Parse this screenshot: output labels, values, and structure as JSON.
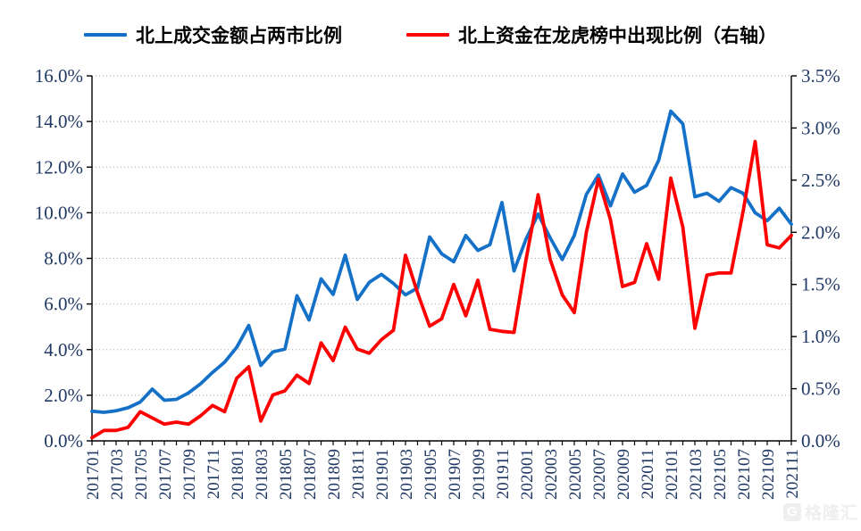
{
  "colors": {
    "blue_series": "#1571C8",
    "red_series": "#FE0000",
    "axis_label": "#1F3864",
    "gridline": "#A6A6A6",
    "spine": "#000000",
    "watermark_gray": "#e2e2e2"
  },
  "legend": {
    "items": [
      {
        "label": "北上成交金额占两市比例",
        "color": "#1571C8"
      },
      {
        "label": "北上资金在龙虎榜中出现比例（右轴）",
        "color": "#FE0000"
      }
    ]
  },
  "watermark": {
    "icon_letter": "G",
    "text": "格隆汇"
  },
  "chart_data": {
    "type": "line",
    "grid": "horizontal-dotted",
    "legend_position": "top-center",
    "x": [
      "201701",
      "201702",
      "201703",
      "201704",
      "201705",
      "201706",
      "201707",
      "201708",
      "201709",
      "201710",
      "201711",
      "201712",
      "201801",
      "201802",
      "201803",
      "201804",
      "201805",
      "201806",
      "201807",
      "201808",
      "201809",
      "201810",
      "201811",
      "201812",
      "201901",
      "201902",
      "201903",
      "201904",
      "201905",
      "201906",
      "201907",
      "201908",
      "201909",
      "201910",
      "201911",
      "201912",
      "202001",
      "202002",
      "202003",
      "202004",
      "202005",
      "202006",
      "202007",
      "202008",
      "202009",
      "202010",
      "202011",
      "202012",
      "202101",
      "202102",
      "202103",
      "202104",
      "202105",
      "202106",
      "202107",
      "202108",
      "202109",
      "202110",
      "202111"
    ],
    "x_tick_labels": [
      "201701",
      "201703",
      "201705",
      "201707",
      "201709",
      "201711",
      "201801",
      "201803",
      "201805",
      "201807",
      "201809",
      "201811",
      "201901",
      "201903",
      "201905",
      "201907",
      "201909",
      "201911",
      "202001",
      "202003",
      "202005",
      "202007",
      "202009",
      "202011",
      "202101",
      "202103",
      "202105",
      "202107",
      "202109",
      "202111"
    ],
    "left_axis": {
      "min": 0,
      "max": 16,
      "step": 2,
      "tick_labels": [
        "0.0%",
        "2.0%",
        "4.0%",
        "6.0%",
        "8.0%",
        "10.0%",
        "12.0%",
        "14.0%",
        "16.0%"
      ]
    },
    "right_axis": {
      "min": 0,
      "max": 3.5,
      "step": 0.5,
      "tick_labels": [
        "0.0%",
        "0.5%",
        "1.0%",
        "1.5%",
        "2.0%",
        "2.5%",
        "3.0%",
        "3.5%"
      ]
    },
    "series": [
      {
        "name": "北上成交金额占两市比例",
        "axis": "left",
        "color": "#1571C8",
        "values": [
          1.3,
          1.25,
          1.32,
          1.45,
          1.7,
          2.27,
          1.78,
          1.82,
          2.1,
          2.5,
          3.0,
          3.45,
          4.1,
          5.06,
          3.31,
          3.9,
          4.02,
          6.36,
          5.3,
          7.1,
          6.42,
          8.14,
          6.2,
          6.95,
          7.3,
          6.9,
          6.4,
          6.7,
          8.94,
          8.2,
          7.85,
          9.0,
          8.35,
          8.6,
          10.45,
          7.45,
          8.85,
          9.94,
          8.9,
          7.95,
          9.0,
          10.8,
          11.65,
          10.3,
          11.7,
          10.9,
          11.2,
          12.3,
          14.45,
          13.9,
          10.7,
          10.85,
          10.5,
          11.1,
          10.85,
          10.0,
          9.65,
          10.2,
          9.5
        ]
      },
      {
        "name": "北上资金在龙虎榜中出现比例（右轴）",
        "axis": "right",
        "color": "#FE0000",
        "values": [
          0.03,
          0.1,
          0.1,
          0.13,
          0.28,
          0.22,
          0.16,
          0.18,
          0.16,
          0.24,
          0.34,
          0.28,
          0.6,
          0.71,
          0.19,
          0.44,
          0.48,
          0.63,
          0.55,
          0.94,
          0.77,
          1.09,
          0.88,
          0.84,
          0.97,
          1.06,
          1.78,
          1.42,
          1.1,
          1.17,
          1.5,
          1.2,
          1.54,
          1.07,
          1.05,
          1.04,
          1.74,
          2.36,
          1.74,
          1.4,
          1.23,
          2.0,
          2.51,
          2.12,
          1.48,
          1.52,
          1.89,
          1.55,
          2.52,
          2.05,
          1.08,
          1.59,
          1.61,
          1.61,
          2.2,
          2.87,
          1.88,
          1.85,
          1.97
        ]
      }
    ]
  }
}
